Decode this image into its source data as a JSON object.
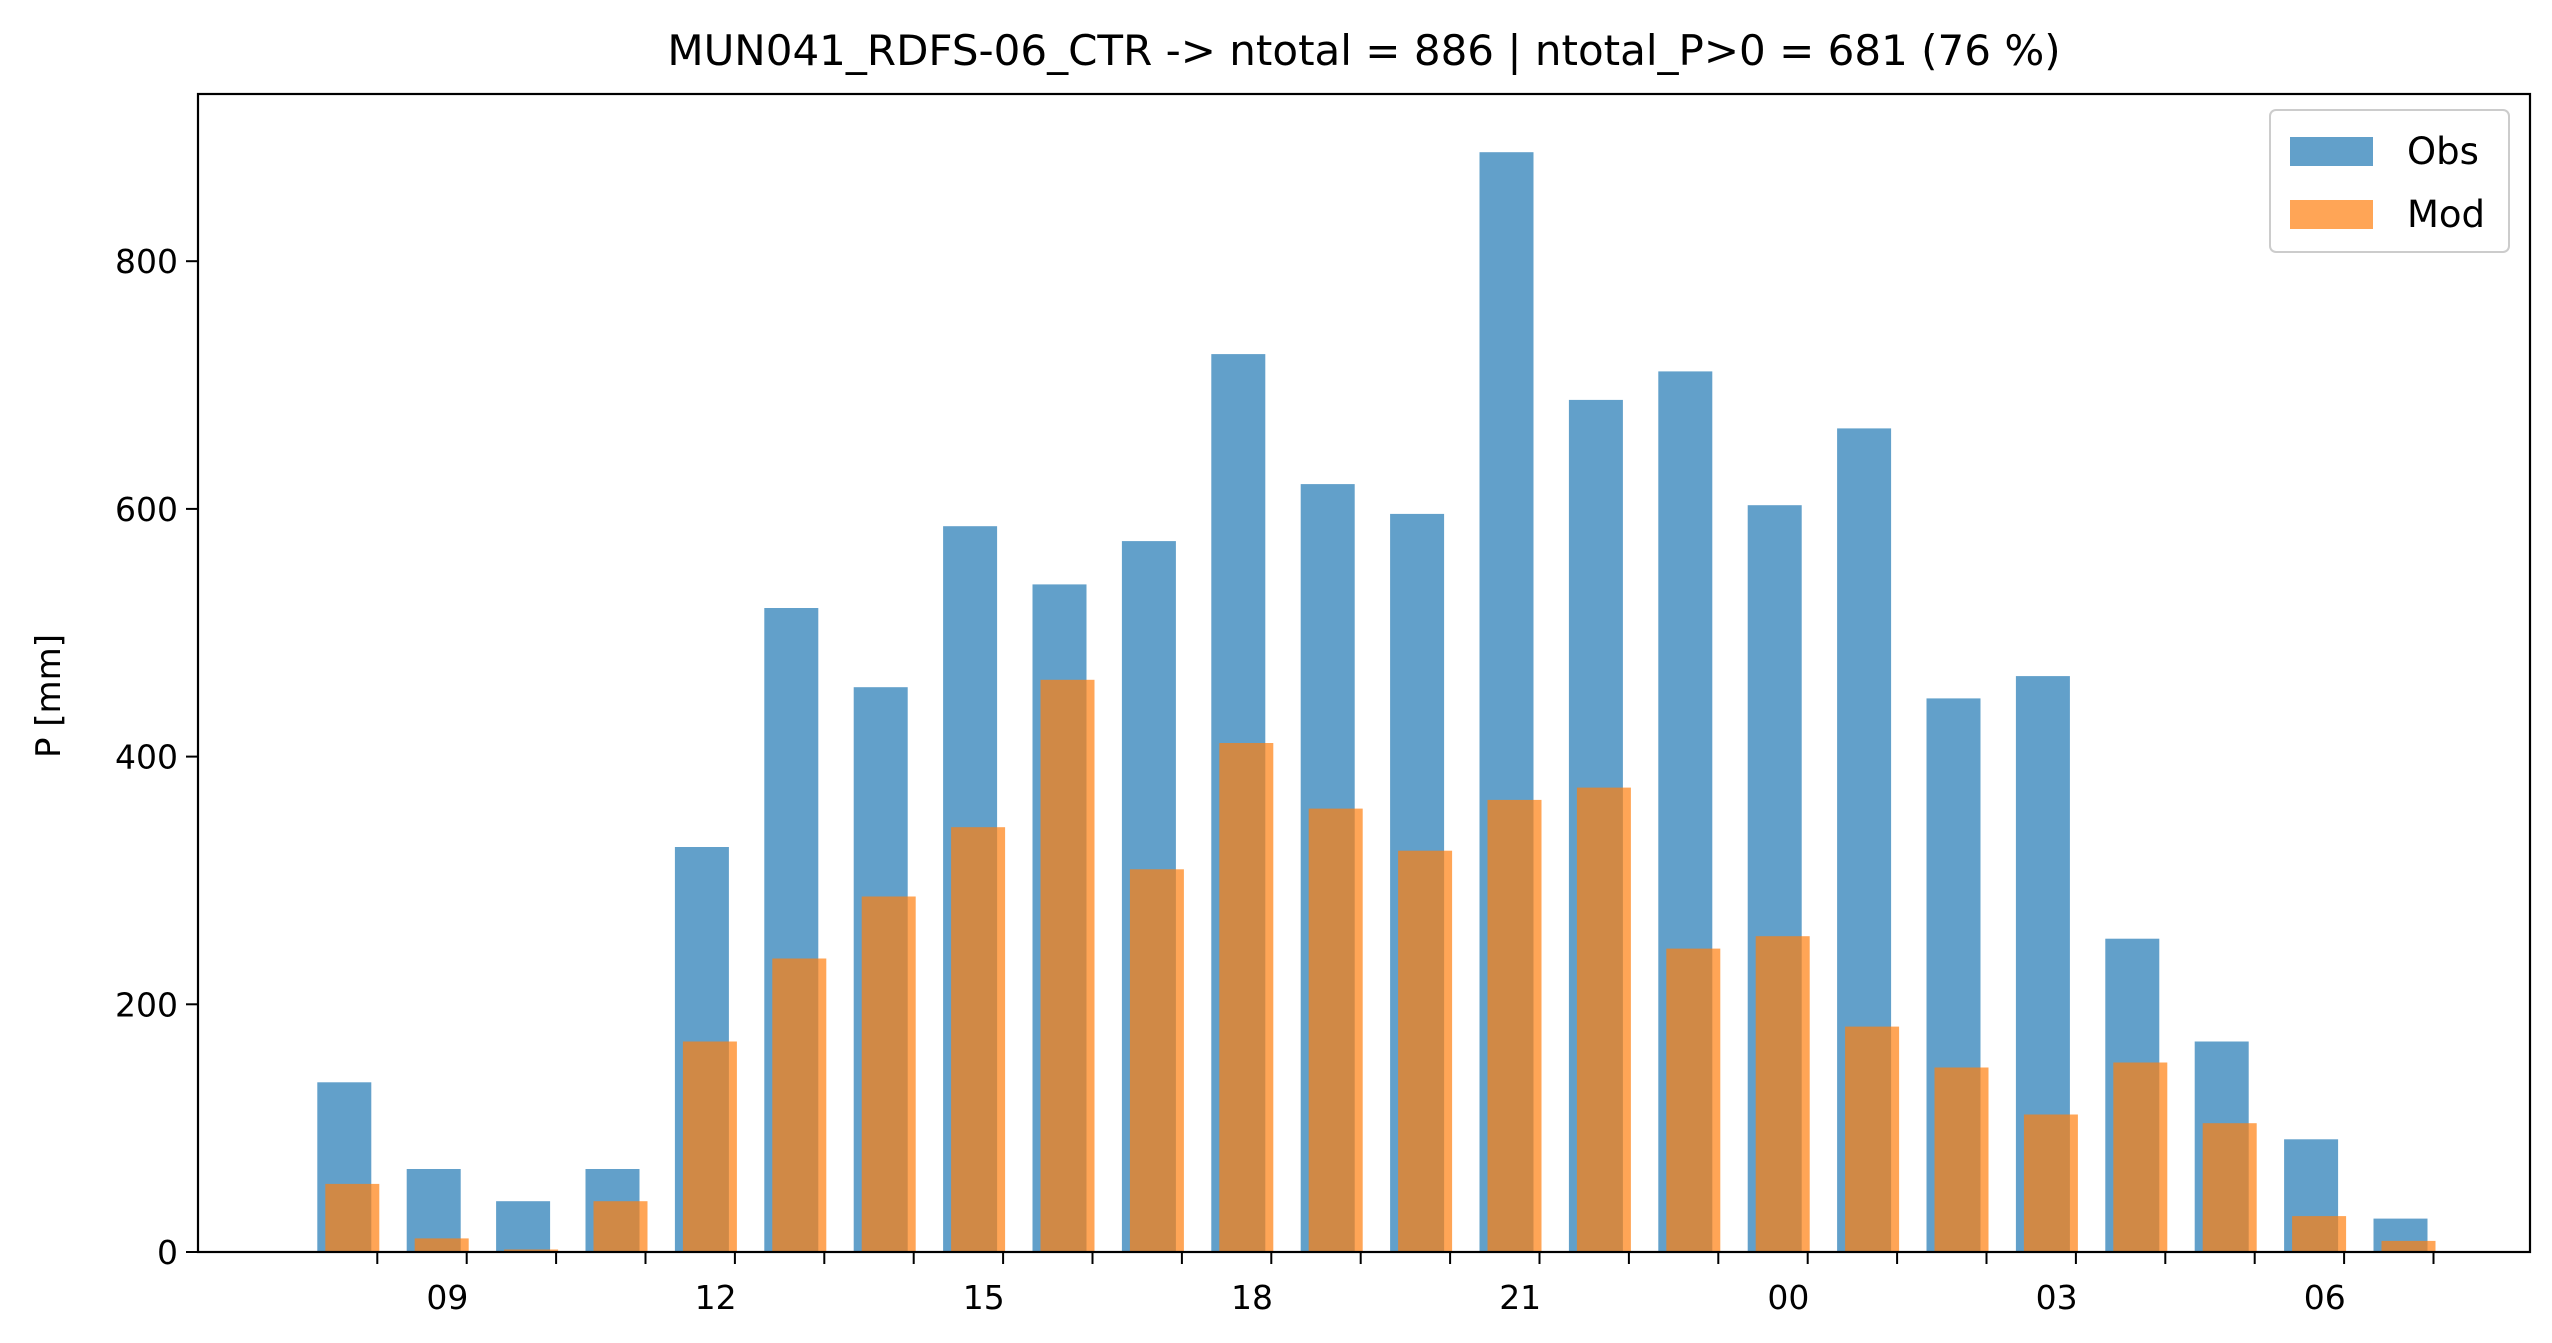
{
  "chart_data": {
    "type": "bar",
    "title": "MUN041_RDFS-06_CTR -> ntotal = 886 | ntotal_P>0 = 681 (76 %)",
    "xlabel": "",
    "ylabel": "P [mm]",
    "ylim": [
      0,
      935
    ],
    "yticks": [
      0,
      200,
      400,
      600,
      800
    ],
    "hours": [
      8,
      9,
      10,
      11,
      12,
      13,
      14,
      15,
      16,
      17,
      18,
      19,
      20,
      21,
      22,
      23,
      0,
      1,
      2,
      3,
      4,
      5,
      6,
      7
    ],
    "xtick_labels": [
      "",
      "09",
      "",
      "",
      "12",
      "",
      "",
      "15",
      "",
      "",
      "18",
      "",
      "",
      "21",
      "",
      "",
      "00",
      "",
      "",
      "03",
      "",
      "",
      "06",
      ""
    ],
    "series": [
      {
        "name": "Obs",
        "color": "#1f77b4",
        "values": [
          137,
          67,
          41,
          67,
          327,
          520,
          456,
          586,
          539,
          574,
          725,
          620,
          596,
          888,
          688,
          711,
          603,
          665,
          447,
          465,
          253,
          170,
          91,
          27
        ]
      },
      {
        "name": "Mod",
        "color": "#ff7f0e",
        "values": [
          55,
          11,
          2,
          41,
          170,
          237,
          287,
          343,
          462,
          309,
          411,
          358,
          324,
          365,
          375,
          245,
          255,
          182,
          149,
          111,
          153,
          104,
          29,
          9
        ]
      }
    ],
    "legend": {
      "position": "top-right",
      "items": [
        "Obs",
        "Mod"
      ]
    },
    "grid": false
  }
}
